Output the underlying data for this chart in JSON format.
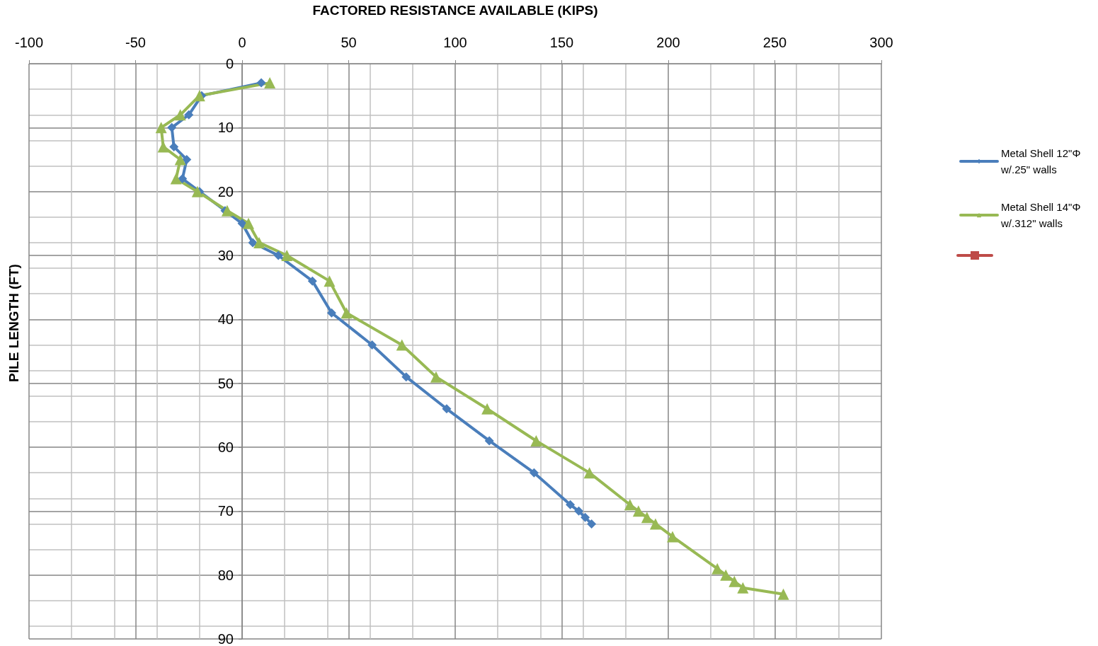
{
  "chart_data": {
    "type": "line",
    "xlabel": "FACTORED RESISTANCE AVAILABLE (KIPS)",
    "ylabel": "PILE LENGTH (FT)",
    "xlim": [
      -100,
      300
    ],
    "xticks": [
      -100,
      -50,
      0,
      50,
      100,
      150,
      200,
      250,
      300
    ],
    "ylim": [
      90,
      0
    ],
    "yticks": [
      0,
      10,
      20,
      30,
      40,
      50,
      60,
      70,
      80,
      90
    ],
    "grid": true,
    "legend": "right",
    "line_style": "solid",
    "series": [
      {
        "name": "Metal Shell 12\"Φ w/.25\" walls",
        "color": "#4a7ebb",
        "marker": "diamond",
        "x": [
          9,
          -19,
          -25,
          -33,
          -32,
          -26,
          -28,
          -20,
          -8,
          0,
          5,
          17,
          33,
          42,
          61,
          77,
          96,
          116,
          137,
          154,
          158,
          161,
          164
        ],
        "values": [
          3,
          5,
          8,
          10,
          13,
          15,
          18,
          20,
          23,
          25,
          28,
          30,
          34,
          39,
          44,
          49,
          54,
          59,
          64,
          69,
          70,
          71,
          72
        ]
      },
      {
        "name": "Metal Shell 14\"Φ w/.312\" walls",
        "color": "#98b954",
        "marker": "triangle",
        "x": [
          13,
          -20,
          -29,
          -38,
          -37,
          -29,
          -31,
          -21,
          -7,
          3,
          8,
          21,
          41,
          49,
          75,
          91,
          115,
          138,
          163,
          182,
          186,
          190,
          194,
          202,
          223,
          227,
          231,
          235,
          254
        ],
        "values": [
          3,
          5,
          8,
          10,
          13,
          15,
          18,
          20,
          23,
          25,
          28,
          30,
          34,
          39,
          44,
          49,
          54,
          59,
          64,
          69,
          70,
          71,
          72,
          74,
          79,
          80,
          81,
          82,
          83
        ]
      },
      {
        "color": "#be4b48",
        "marker": "square"
      }
    ]
  }
}
